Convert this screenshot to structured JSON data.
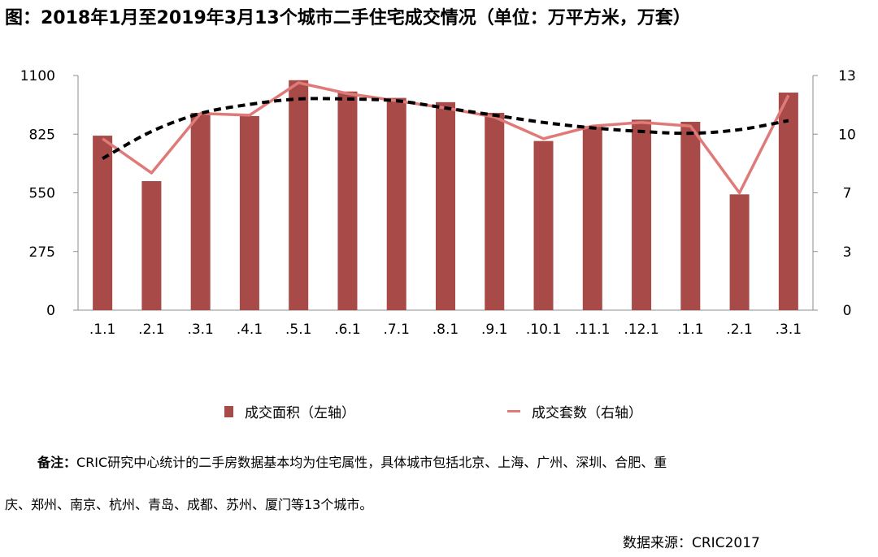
{
  "title": "图：2018年1月至2019年3月13个城市二手住宅成交情况（单位：万平方米，万套）",
  "chart_data": {
    "type": "bar+line",
    "categories": [
      ".1.1",
      ".2.1",
      ".3.1",
      ".4.1",
      ".5.1",
      ".6.1",
      ".7.1",
      ".8.1",
      ".9.1",
      ".10.1",
      ".11.1",
      ".12.1",
      ".1.1",
      ".2.1",
      ".3.1"
    ],
    "series": [
      {
        "name": "成交面积（左轴）",
        "kind": "bar",
        "axis": "left",
        "color": "#A84A48",
        "values": [
          818,
          605,
          925,
          910,
          1078,
          1025,
          995,
          975,
          925,
          793,
          863,
          893,
          883,
          543,
          1020
        ]
      },
      {
        "name": "成交套数（右轴）",
        "kind": "line",
        "axis": "right",
        "color": "#E07A78",
        "values": [
          9.5,
          7.6,
          10.9,
          10.8,
          12.6,
          12.0,
          11.6,
          11.2,
          10.7,
          9.5,
          10.2,
          10.4,
          10.2,
          6.5,
          11.9
        ]
      },
      {
        "name": "trend",
        "kind": "trend",
        "axis": "right",
        "color": "#000000",
        "values": [
          8.4,
          9.9,
          10.9,
          11.4,
          11.7,
          11.7,
          11.6,
          11.2,
          10.8,
          10.4,
          10.1,
          9.9,
          9.8,
          10.0,
          10.5
        ]
      }
    ],
    "y_left": {
      "ticks": [
        0,
        275,
        550,
        825,
        1100
      ],
      "lim": [
        0,
        1100
      ]
    },
    "y_right": {
      "ticks": [
        "0",
        "3",
        "7",
        "10",
        "13"
      ],
      "lim": [
        0,
        13
      ]
    }
  },
  "legend": {
    "bar_label": "成交面积（左轴）",
    "line_label": "成交套数（右轴）"
  },
  "note": {
    "bold": "备注：",
    "line1": "CRIC研究中心统计的二手房数据基本均为住宅属性，具体城市包括北京、上海、广州、深圳、合肥、重",
    "line2": "庆、郑州、南京、杭州、青岛、成都、苏州、厦门等13个城市。"
  },
  "source": "数据来源：CRIC2017"
}
